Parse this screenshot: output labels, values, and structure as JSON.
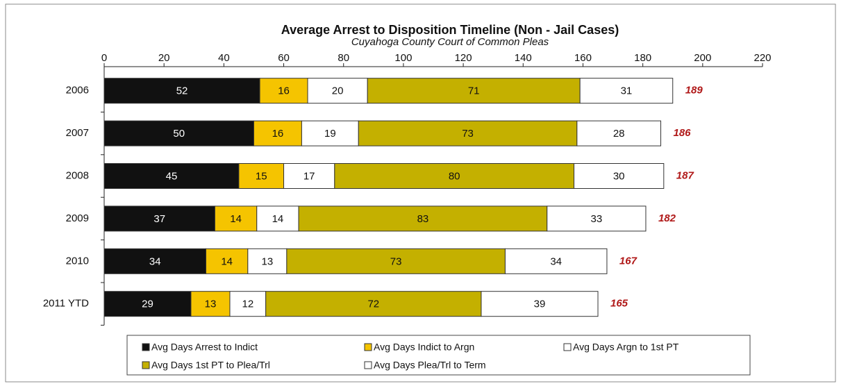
{
  "chart_data": {
    "type": "stacked-barh",
    "title": "Average Arrest to Disposition  Timeline (Non - Jail Cases)",
    "subtitle": "Cuyahoga County Court of Common Pleas",
    "categories": [
      "2006",
      "2007",
      "2008",
      "2009",
      "2010",
      "2011 YTD"
    ],
    "series": [
      {
        "name": "Avg Days Arrest to Indict",
        "color": "#111111",
        "values": [
          52,
          50,
          45,
          37,
          34,
          29
        ]
      },
      {
        "name": "Avg Days Indict to Argn",
        "color": "#f5c400",
        "values": [
          16,
          16,
          15,
          14,
          14,
          13
        ]
      },
      {
        "name": "Avg Days Argn to 1st PT",
        "color": "#ffffff",
        "values": [
          20,
          19,
          17,
          14,
          13,
          12
        ]
      },
      {
        "name": "Avg Days 1st PT to Plea/Trl",
        "color": "#c4b000",
        "values": [
          71,
          73,
          80,
          83,
          73,
          72
        ]
      },
      {
        "name": "Avg Days Plea/Trl to Term",
        "color": "#ffffff",
        "values": [
          31,
          28,
          30,
          33,
          34,
          39
        ]
      }
    ],
    "totals": [
      189,
      186,
      187,
      182,
      167,
      165
    ],
    "xlim": [
      0,
      220
    ],
    "xticks": [
      0,
      20,
      40,
      60,
      80,
      100,
      120,
      140,
      160,
      180,
      200,
      220
    ]
  }
}
